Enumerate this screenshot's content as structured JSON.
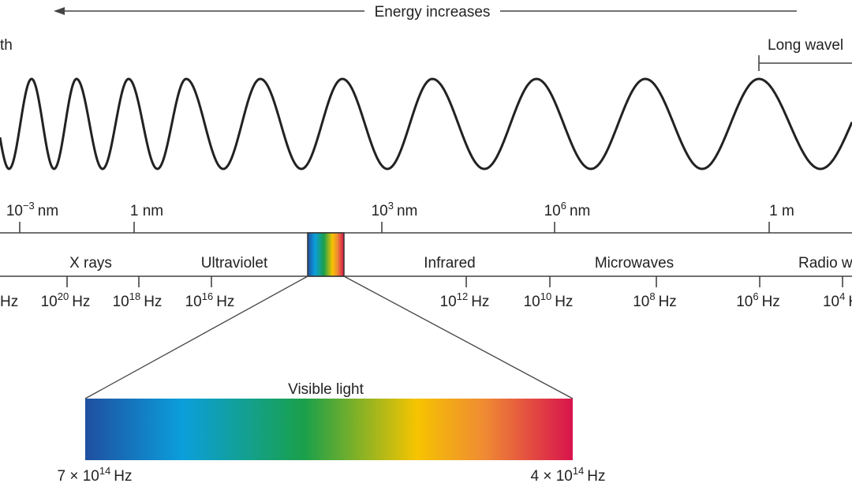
{
  "title": "Energy increases",
  "left_label": "th",
  "right_label": "Long wavel",
  "wavelength_labels": [
    {
      "base": "10",
      "sup": "−3",
      "unit": "nm"
    },
    {
      "text": "1 nm"
    },
    {
      "base": "10",
      "sup": "3",
      "unit": "nm"
    },
    {
      "base": "10",
      "sup": "6",
      "unit": "nm"
    },
    {
      "text": "1 m"
    }
  ],
  "bands": [
    "X rays",
    "Ultraviolet",
    "Infrared",
    "Microwaves",
    "Radio w"
  ],
  "frequency_labels": [
    {
      "text": "Hz"
    },
    {
      "base": "10",
      "sup": "20",
      "unit": "Hz"
    },
    {
      "base": "10",
      "sup": "18",
      "unit": "Hz"
    },
    {
      "base": "10",
      "sup": "16",
      "unit": "Hz"
    },
    {
      "base": "10",
      "sup": "12",
      "unit": "Hz"
    },
    {
      "base": "10",
      "sup": "10",
      "unit": "Hz"
    },
    {
      "base": "10",
      "sup": "8",
      "unit": "Hz"
    },
    {
      "base": "10",
      "sup": "6",
      "unit": "Hz"
    },
    {
      "base": "10",
      "sup": "4",
      "unit": "H"
    }
  ],
  "visible": {
    "title": "Visible light",
    "left": {
      "base": "7 × 10",
      "sup": "14",
      "unit": "Hz"
    },
    "right": {
      "base": "4 × 10",
      "sup": "14",
      "unit": "Hz"
    }
  }
}
